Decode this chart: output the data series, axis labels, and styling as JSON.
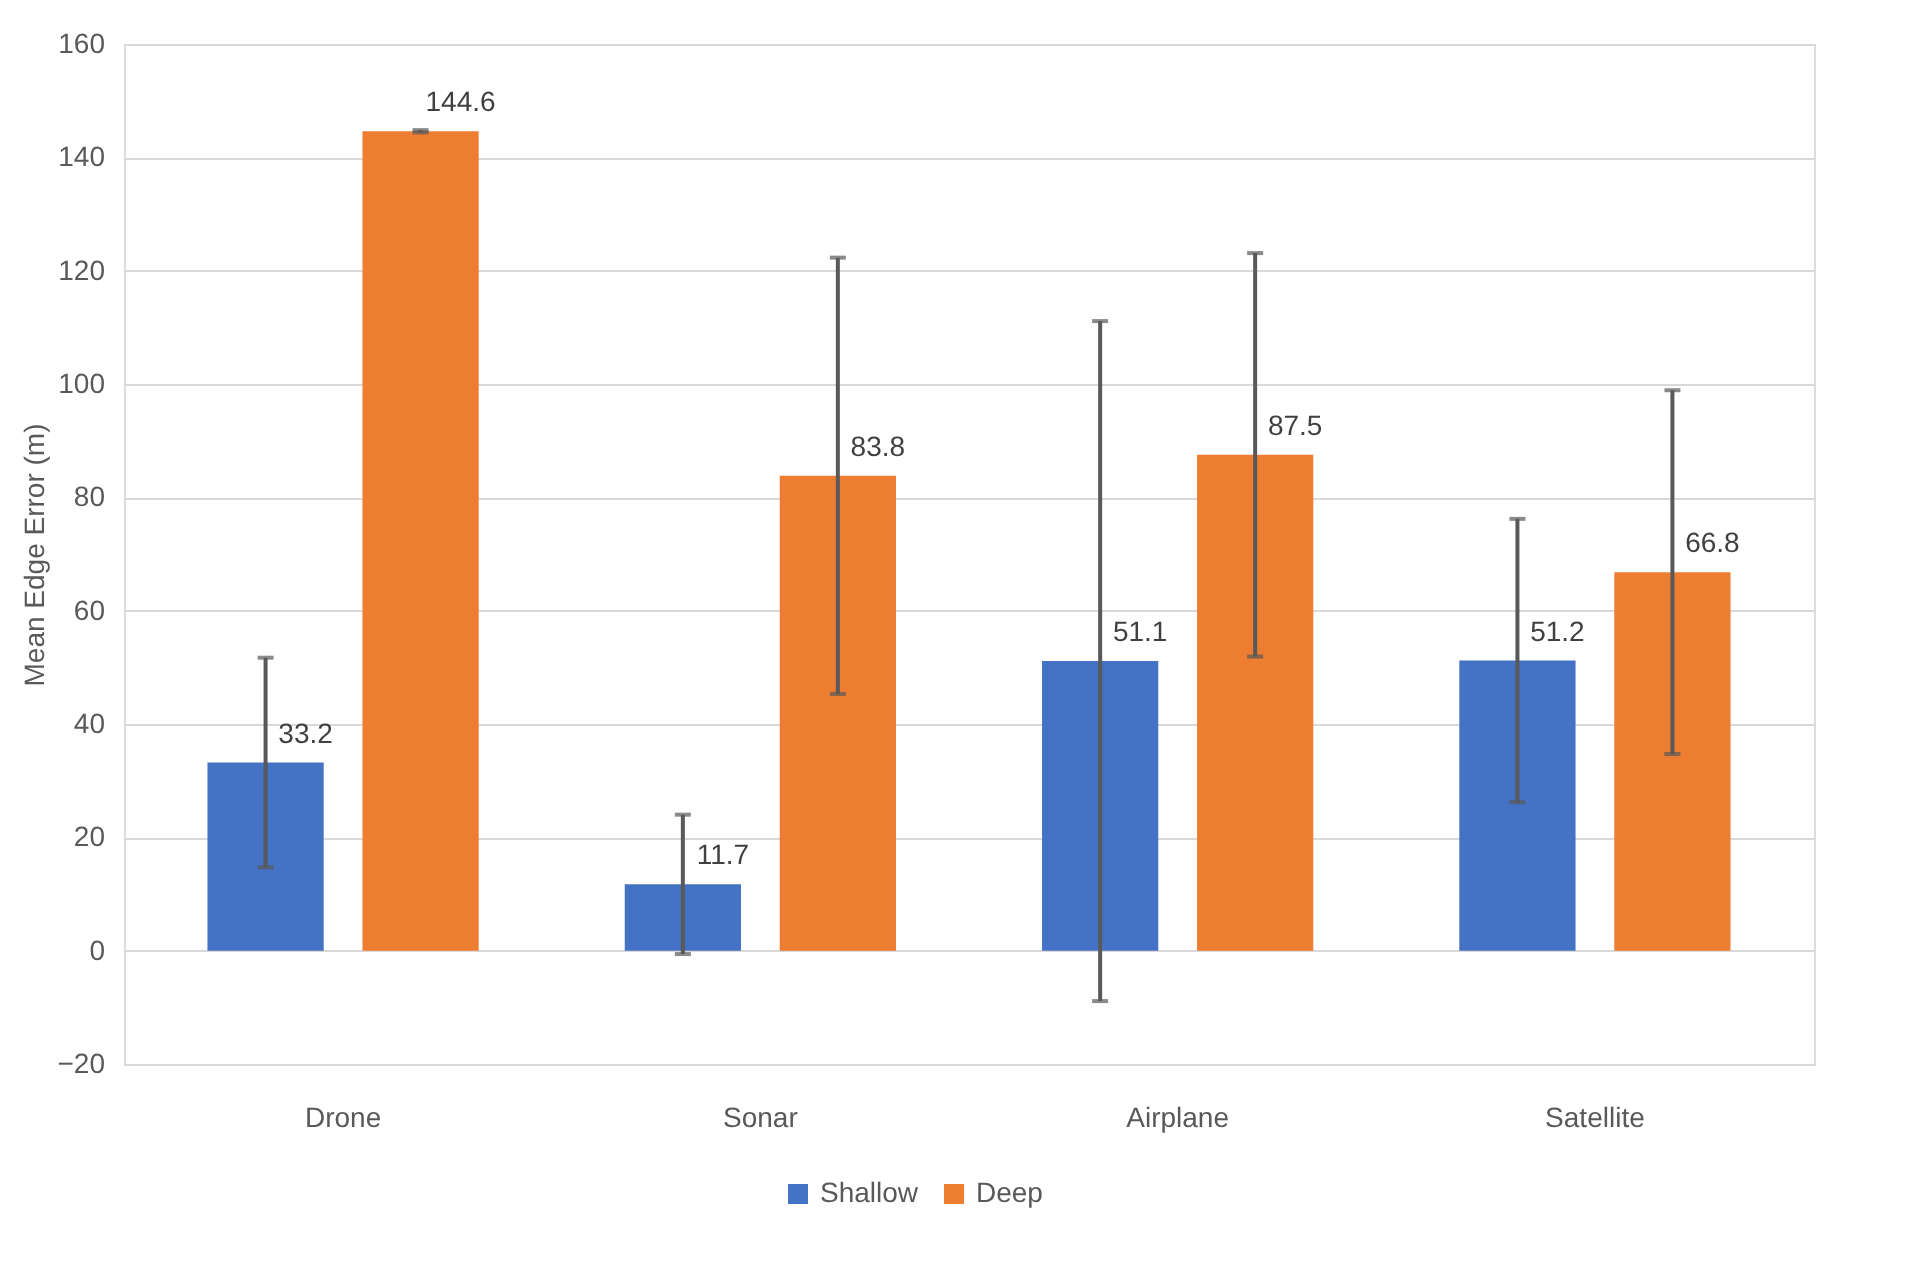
{
  "chart_data": {
    "type": "bar",
    "ylabel": "Mean Edge Error (m)",
    "categories": [
      "Drone",
      "Sonar",
      "Airplane",
      "Satellite"
    ],
    "series": [
      {
        "name": "Shallow",
        "color": "#4472c4",
        "values": [
          33.2,
          11.7,
          51.1,
          51.2
        ],
        "errors": [
          18.5,
          12.3,
          60,
          25
        ]
      },
      {
        "name": "Deep",
        "color": "#ed7d31",
        "values": [
          144.6,
          83.8,
          87.5,
          66.8
        ],
        "errors": [
          0.2,
          38.5,
          35.6,
          32.1
        ]
      }
    ],
    "ylim": [
      -20,
      160
    ],
    "yticks": [
      -20,
      0,
      20,
      40,
      60,
      80,
      100,
      120,
      140,
      160
    ],
    "grid": "y",
    "legend": "bottom",
    "data_labels": true
  }
}
